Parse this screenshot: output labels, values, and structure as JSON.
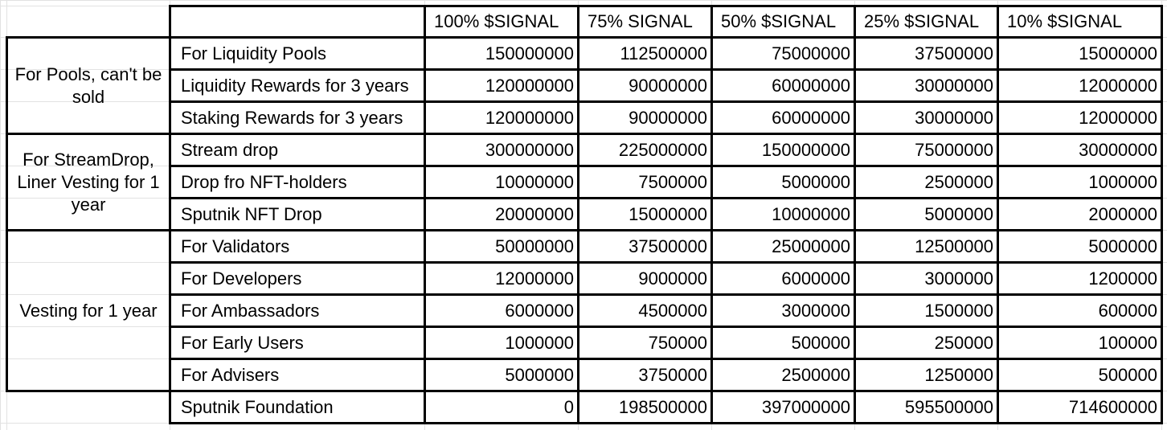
{
  "columns": [
    "100% $SIGNAL",
    "75% SIGNAL",
    "50% $SIGNAL",
    "25% $SIGNAL",
    "10% $SIGNAL"
  ],
  "groups": [
    {
      "label": "For Pools, can't be sold"
    },
    {
      "label": "For StreamDrop, Liner Vesting for 1 year"
    },
    {
      "label": "Vesting for 1 year"
    }
  ],
  "rows": [
    {
      "label": "For Liquidity Pools",
      "values": [
        "150000000",
        "112500000",
        "75000000",
        "37500000",
        "15000000"
      ]
    },
    {
      "label": "Liquidity Rewards for 3 years",
      "values": [
        "120000000",
        "90000000",
        "60000000",
        "30000000",
        "12000000"
      ]
    },
    {
      "label": "Staking Rewards for 3 years",
      "values": [
        "120000000",
        "90000000",
        "60000000",
        "30000000",
        "12000000"
      ]
    },
    {
      "label": "Stream drop",
      "values": [
        "300000000",
        "225000000",
        "150000000",
        "75000000",
        "30000000"
      ]
    },
    {
      "label": "Drop fro NFT-holders",
      "values": [
        "10000000",
        "7500000",
        "5000000",
        "2500000",
        "1000000"
      ]
    },
    {
      "label": "Sputnik NFT Drop",
      "values": [
        "20000000",
        "15000000",
        "10000000",
        "5000000",
        "2000000"
      ]
    },
    {
      "label": "For Validators",
      "values": [
        "50000000",
        "37500000",
        "25000000",
        "12500000",
        "5000000"
      ]
    },
    {
      "label": "For Developers",
      "values": [
        "12000000",
        "9000000",
        "6000000",
        "3000000",
        "1200000"
      ]
    },
    {
      "label": "For Ambassadors",
      "values": [
        "6000000",
        "4500000",
        "3000000",
        "1500000",
        "600000"
      ]
    },
    {
      "label": "For Early Users",
      "values": [
        "1000000",
        "750000",
        "500000",
        "250000",
        "100000"
      ]
    },
    {
      "label": "For Advisers",
      "values": [
        "5000000",
        "3750000",
        "2500000",
        "1250000",
        "500000"
      ]
    },
    {
      "label": "Sputnik Foundation",
      "values": [
        "0",
        "198500000",
        "397000000",
        "595500000",
        "714600000"
      ]
    }
  ]
}
